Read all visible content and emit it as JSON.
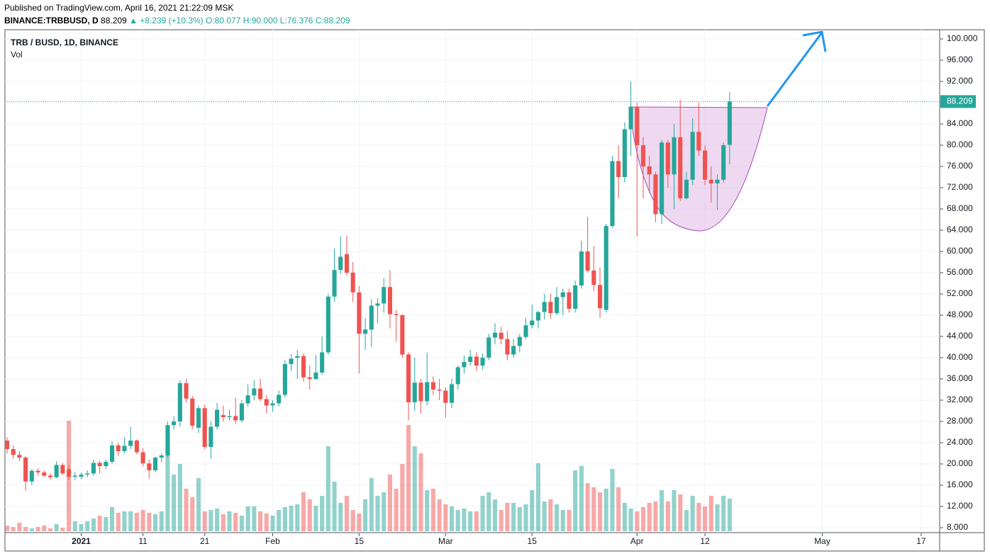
{
  "header": {
    "published": "Published on TradingView.com, April 16, 2021 21:22:09 MSK",
    "symbol": "BINANCE:TRBBUSD, D",
    "price": "88.209",
    "change": "▲ +8.239 (+10.3%)",
    "ohlc": "O:80.077 H:90.000 L:76.376 C:88.209"
  },
  "chart_data": {
    "type": "candlestick",
    "title": "TRB / BUSD, 1D, BINANCE",
    "volume_label": "Vol",
    "up_color": "#26a69a",
    "down_color": "#ef5350",
    "grid": true,
    "last_price": {
      "value": 88.209,
      "label": "88.209"
    },
    "xlim": [
      "2020-12-20",
      "2021-05-20"
    ],
    "xticks": [
      {
        "value": "2021-01-01",
        "label": "2021"
      },
      {
        "value": "2021-01-11",
        "label": "11"
      },
      {
        "value": "2021-01-21",
        "label": "21"
      },
      {
        "value": "2021-02-01",
        "label": "Feb"
      },
      {
        "value": "2021-02-15",
        "label": "15"
      },
      {
        "value": "2021-03-01",
        "label": "Mar"
      },
      {
        "value": "2021-03-15",
        "label": "15"
      },
      {
        "value": "2021-04-01",
        "label": "Apr"
      },
      {
        "value": "2021-04-12",
        "label": "12"
      },
      {
        "value": "2021-05-01",
        "label": "May"
      },
      {
        "value": "2021-05-17",
        "label": "17"
      }
    ],
    "ylim": [
      7.07,
      101.73
    ],
    "yticks": [
      {
        "value": 8,
        "label": "8.000"
      },
      {
        "value": 12,
        "label": "12.000"
      },
      {
        "value": 16,
        "label": "16.000"
      },
      {
        "value": 20,
        "label": "20.000"
      },
      {
        "value": 24,
        "label": "24.000"
      },
      {
        "value": 28,
        "label": "28.000"
      },
      {
        "value": 32,
        "label": "32.000"
      },
      {
        "value": 36,
        "label": "36.000"
      },
      {
        "value": 40,
        "label": "40.000"
      },
      {
        "value": 44,
        "label": "44.000"
      },
      {
        "value": 48,
        "label": "48.000"
      },
      {
        "value": 52,
        "label": "52.000"
      },
      {
        "value": 56,
        "label": "56.000"
      },
      {
        "value": 60,
        "label": "60.000"
      },
      {
        "value": 64,
        "label": "64.000"
      },
      {
        "value": 68,
        "label": "68.000"
      },
      {
        "value": 72,
        "label": "72.000"
      },
      {
        "value": 76,
        "label": "76.000"
      },
      {
        "value": 80,
        "label": "80.000"
      },
      {
        "value": 84,
        "label": "84.000"
      },
      {
        "value": 88,
        "label": "88.000"
      },
      {
        "value": 92,
        "label": "92.000"
      },
      {
        "value": 96,
        "label": "96.000"
      },
      {
        "value": 100,
        "label": "100.000"
      }
    ],
    "x": [
      "2020-12-20",
      "2020-12-21",
      "2020-12-22",
      "2020-12-23",
      "2020-12-24",
      "2020-12-25",
      "2020-12-26",
      "2020-12-27",
      "2020-12-28",
      "2020-12-29",
      "2020-12-30",
      "2020-12-31",
      "2021-01-01",
      "2021-01-02",
      "2021-01-03",
      "2021-01-04",
      "2021-01-05",
      "2021-01-06",
      "2021-01-07",
      "2021-01-08",
      "2021-01-09",
      "2021-01-10",
      "2021-01-11",
      "2021-01-12",
      "2021-01-13",
      "2021-01-14",
      "2021-01-15",
      "2021-01-16",
      "2021-01-17",
      "2021-01-18",
      "2021-01-19",
      "2021-01-20",
      "2021-01-21",
      "2021-01-22",
      "2021-01-23",
      "2021-01-24",
      "2021-01-25",
      "2021-01-26",
      "2021-01-27",
      "2021-01-28",
      "2021-01-29",
      "2021-01-30",
      "2021-01-31",
      "2021-02-01",
      "2021-02-02",
      "2021-02-03",
      "2021-02-04",
      "2021-02-05",
      "2021-02-06",
      "2021-02-07",
      "2021-02-08",
      "2021-02-09",
      "2021-02-10",
      "2021-02-11",
      "2021-02-12",
      "2021-02-13",
      "2021-02-14",
      "2021-02-15",
      "2021-02-16",
      "2021-02-17",
      "2021-02-18",
      "2021-02-19",
      "2021-02-20",
      "2021-02-21",
      "2021-02-22",
      "2021-02-23",
      "2021-02-24",
      "2021-02-25",
      "2021-02-26",
      "2021-02-27",
      "2021-02-28",
      "2021-03-01",
      "2021-03-02",
      "2021-03-03",
      "2021-03-04",
      "2021-03-05",
      "2021-03-06",
      "2021-03-07",
      "2021-03-08",
      "2021-03-09",
      "2021-03-10",
      "2021-03-11",
      "2021-03-12",
      "2021-03-13",
      "2021-03-14",
      "2021-03-15",
      "2021-03-16",
      "2021-03-17",
      "2021-03-18",
      "2021-03-19",
      "2021-03-20",
      "2021-03-21",
      "2021-03-22",
      "2021-03-23",
      "2021-03-24",
      "2021-03-25",
      "2021-03-26",
      "2021-03-27",
      "2021-03-28",
      "2021-03-29",
      "2021-03-30",
      "2021-03-31",
      "2021-04-01",
      "2021-04-02",
      "2021-04-03",
      "2021-04-04",
      "2021-04-05",
      "2021-04-06",
      "2021-04-07",
      "2021-04-08",
      "2021-04-09",
      "2021-04-10",
      "2021-04-11",
      "2021-04-12",
      "2021-04-13",
      "2021-04-14",
      "2021-04-15",
      "2021-04-16"
    ],
    "candles": [
      [
        24.4,
        25,
        22,
        22.8
      ],
      [
        22.8,
        23.5,
        21,
        21.7
      ],
      [
        21.7,
        22.4,
        20.5,
        21.2
      ],
      [
        21.2,
        21.5,
        15,
        16.7
      ],
      [
        16.7,
        19,
        16,
        18.7
      ],
      [
        18.7,
        19.2,
        17.8,
        18.4
      ],
      [
        18.4,
        18.8,
        17.5,
        17.8
      ],
      [
        17.8,
        18.3,
        17,
        17.5
      ],
      [
        17.5,
        20.5,
        17.3,
        19.8
      ],
      [
        19.8,
        20.2,
        17.9,
        18.2
      ],
      [
        19,
        19.8,
        17,
        17.6
      ],
      [
        17.6,
        18.5,
        17,
        17.8
      ],
      [
        17.6,
        18.4,
        17.2,
        18
      ],
      [
        18,
        18.8,
        17.5,
        18.2
      ],
      [
        18.2,
        20.8,
        17.8,
        20.2
      ],
      [
        20.2,
        20.6,
        18.2,
        19.6
      ],
      [
        19.6,
        20.8,
        19,
        20.4
      ],
      [
        20.4,
        24.3,
        20,
        23.5
      ],
      [
        23.5,
        24,
        21.5,
        22.4
      ],
      [
        22.4,
        25,
        22,
        23.4
      ],
      [
        23.4,
        27,
        22.8,
        24.4
      ],
      [
        24.4,
        24.6,
        21.8,
        22.2
      ],
      [
        22.2,
        23,
        19.5,
        20.1
      ],
      [
        20.1,
        20.8,
        17.2,
        18.8
      ],
      [
        18.8,
        21.4,
        18.4,
        21.2
      ],
      [
        21.2,
        22,
        20.3,
        21.6
      ],
      [
        21.6,
        28,
        21.3,
        27.3
      ],
      [
        27.3,
        29,
        26.5,
        28
      ],
      [
        28,
        35.7,
        27,
        35.2
      ],
      [
        35.2,
        36,
        31.5,
        32.3
      ],
      [
        32.3,
        32.8,
        26.5,
        27.2
      ],
      [
        26.8,
        31,
        25.8,
        30.5
      ],
      [
        30.5,
        31.2,
        22.8,
        23.2
      ],
      [
        23.2,
        28,
        21,
        27
      ],
      [
        27,
        31.5,
        26.5,
        30.2
      ],
      [
        29.2,
        31,
        28,
        28.8
      ],
      [
        28.8,
        30.2,
        28.2,
        29
      ],
      [
        29,
        32.5,
        27.5,
        28.2
      ],
      [
        28.2,
        32,
        27.8,
        31.4
      ],
      [
        31.4,
        35,
        30.8,
        32.9
      ],
      [
        32.9,
        35.8,
        32,
        34.2
      ],
      [
        34.2,
        36,
        31.8,
        32.2
      ],
      [
        32.2,
        33,
        29.5,
        31
      ],
      [
        31,
        32,
        29.8,
        31.4
      ],
      [
        31.4,
        33.8,
        30.8,
        33
      ],
      [
        33,
        39.5,
        32.5,
        38.8
      ],
      [
        38.8,
        40.6,
        37.5,
        39.8
      ],
      [
        40,
        41.5,
        36,
        40.3
      ],
      [
        40.3,
        40.8,
        35.5,
        36.3
      ],
      [
        36.3,
        38.5,
        34,
        36
      ],
      [
        36,
        40.5,
        35.8,
        37.2
      ],
      [
        37.2,
        44,
        36.8,
        41
      ],
      [
        41,
        52,
        40.5,
        51.5
      ],
      [
        51.5,
        60.5,
        50.5,
        56.5
      ],
      [
        56.5,
        62.8,
        55.8,
        59
      ],
      [
        59.5,
        63,
        55.5,
        56
      ],
      [
        56,
        58,
        50.5,
        52.3
      ],
      [
        52.3,
        53.5,
        37,
        44.5
      ],
      [
        44.5,
        47.5,
        41.5,
        45.3
      ],
      [
        45.3,
        51,
        42,
        49.8
      ],
      [
        49.8,
        51.2,
        46.5,
        50.2
      ],
      [
        50.2,
        55,
        48.5,
        53.3
      ],
      [
        53.3,
        56.5,
        45.5,
        48.2
      ],
      [
        48.2,
        49,
        43,
        48
      ],
      [
        48,
        48.2,
        40,
        40.6
      ],
      [
        40.6,
        41,
        28.2,
        31.6
      ],
      [
        31.6,
        40,
        30,
        35.3
      ],
      [
        35.3,
        36,
        29.5,
        31.8
      ],
      [
        31.8,
        41,
        31,
        35.4
      ],
      [
        35.4,
        36.5,
        33,
        34
      ],
      [
        34,
        36,
        32,
        33.8
      ],
      [
        33.8,
        34.4,
        28.7,
        31.5
      ],
      [
        31.5,
        36,
        30.5,
        35
      ],
      [
        35,
        38.5,
        34,
        38.2
      ],
      [
        38.2,
        40.4,
        37,
        39.2
      ],
      [
        39.2,
        41.5,
        38.5,
        40.2
      ],
      [
        40.2,
        41,
        37.5,
        38.5
      ],
      [
        38.5,
        40.8,
        37.8,
        40
      ],
      [
        40,
        44.5,
        39.5,
        43.8
      ],
      [
        43.8,
        46.5,
        42.5,
        44.7
      ],
      [
        44.7,
        45.8,
        42.5,
        43.5
      ],
      [
        43.5,
        45,
        39.5,
        40.6
      ],
      [
        40.6,
        43.5,
        40,
        42.2
      ],
      [
        42.2,
        44.5,
        41,
        43.9
      ],
      [
        43.9,
        47.5,
        43.5,
        46.1
      ],
      [
        46.1,
        50,
        45.5,
        47
      ],
      [
        47,
        48.8,
        45.5,
        48.6
      ],
      [
        48.6,
        52,
        47.2,
        50.5
      ],
      [
        50.5,
        52,
        47.3,
        48.4
      ],
      [
        48.4,
        53.3,
        48,
        51.4
      ],
      [
        51.4,
        53,
        48,
        52.3
      ],
      [
        52.3,
        53,
        48.5,
        49.2
      ],
      [
        49.2,
        54.5,
        48.5,
        53.6
      ],
      [
        53.6,
        62,
        53,
        60
      ],
      [
        60,
        66.5,
        56,
        56.4
      ],
      [
        56.4,
        61,
        52.5,
        53.7
      ],
      [
        53.7,
        57,
        47.5,
        49.3
      ],
      [
        49,
        65.2,
        48.5,
        64.8
      ],
      [
        64.8,
        78,
        64.5,
        77
      ],
      [
        77,
        80,
        70,
        74
      ],
      [
        74,
        84.3,
        73,
        83
      ],
      [
        83,
        92,
        78,
        87.2
      ],
      [
        87.2,
        88,
        62.8,
        80
      ],
      [
        80,
        81.5,
        70,
        76
      ],
      [
        76,
        78,
        71,
        74.5
      ],
      [
        74.5,
        75,
        65.5,
        67
      ],
      [
        67,
        81,
        65.2,
        80.5
      ],
      [
        80.5,
        81,
        72,
        74.5
      ],
      [
        74.5,
        84,
        68,
        81.5
      ],
      [
        81.5,
        88.5,
        69.5,
        70
      ],
      [
        70,
        75,
        69.8,
        73.5
      ],
      [
        73.5,
        85,
        72.5,
        82.5
      ],
      [
        82.5,
        88,
        78,
        79
      ],
      [
        79,
        80,
        72.5,
        73.5
      ],
      [
        73.5,
        76,
        69.2,
        72.8
      ],
      [
        72.8,
        74.5,
        67.8,
        73.5
      ],
      [
        73.5,
        80.5,
        73,
        80
      ],
      [
        80.077,
        90,
        76.376,
        88.209
      ]
    ],
    "volume": [
      8,
      6,
      12,
      6,
      4,
      6,
      8,
      4,
      10,
      5,
      156,
      14,
      10,
      14,
      18,
      22,
      20,
      34,
      26,
      28,
      28,
      26,
      30,
      26,
      24,
      28,
      120,
      80,
      95,
      60,
      48,
      75,
      28,
      30,
      32,
      24,
      28,
      26,
      22,
      35,
      35,
      28,
      25,
      22,
      30,
      34,
      36,
      38,
      55,
      45,
      36,
      50,
      120,
      70,
      40,
      50,
      30,
      25,
      45,
      75,
      50,
      55,
      80,
      60,
      95,
      150,
      120,
      110,
      58,
      60,
      45,
      38,
      35,
      30,
      32,
      28,
      28,
      50,
      55,
      45,
      30,
      40,
      40,
      34,
      38,
      58,
      96,
      42,
      45,
      38,
      30,
      30,
      86,
      92,
      68,
      62,
      55,
      60,
      88,
      62,
      40,
      32,
      28,
      34,
      40,
      42,
      58,
      42,
      58,
      52,
      30,
      50,
      40,
      35,
      50,
      38,
      50,
      46
    ]
  }
}
